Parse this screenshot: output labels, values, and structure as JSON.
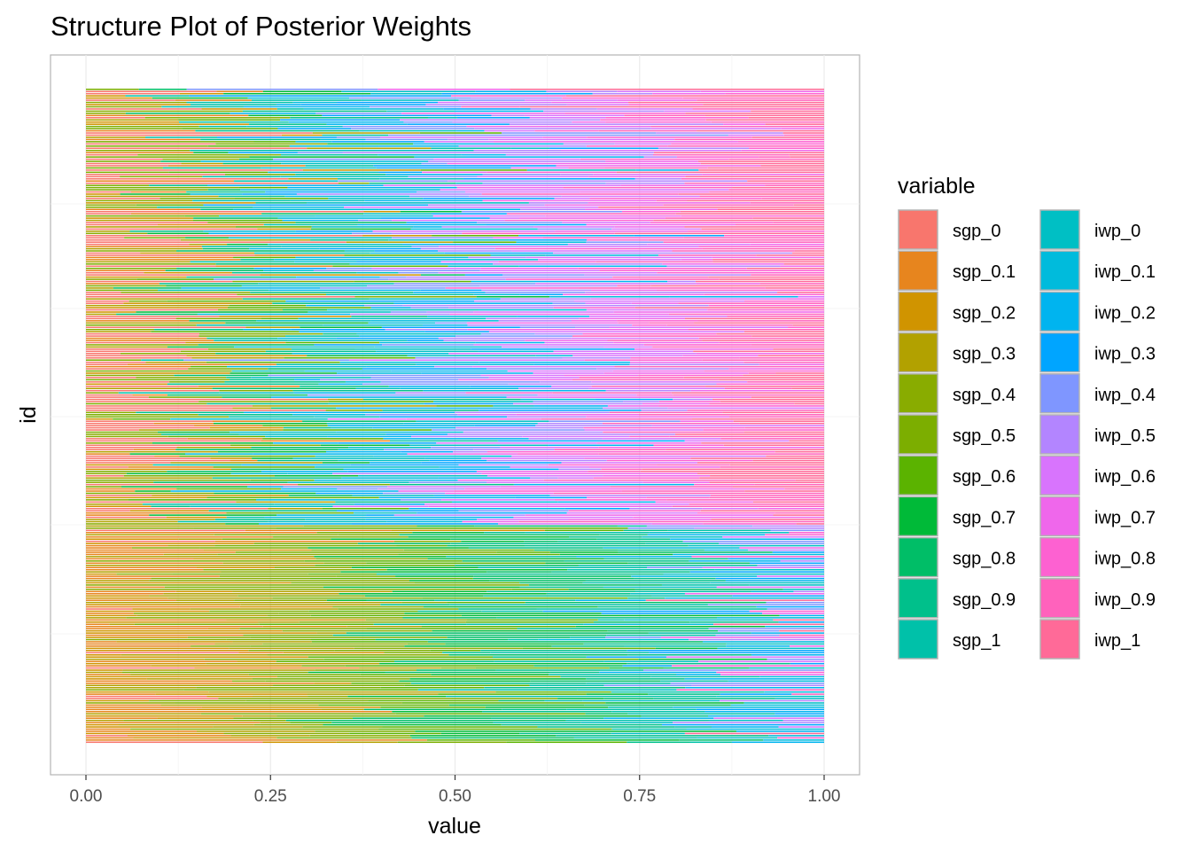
{
  "chart_data": {
    "type": "bar",
    "orientation": "horizontal-stacked",
    "title": "Structure Plot of Posterior Weights",
    "xlabel": "value",
    "ylabel": "id",
    "xlim": [
      0,
      1
    ],
    "x_ticks": [
      "0.00",
      "0.25",
      "0.50",
      "0.75",
      "1.00"
    ],
    "x_tick_values": [
      0,
      0.25,
      0.5,
      0.75,
      1.0
    ],
    "grid": true,
    "n_ids": 300,
    "legend": {
      "title": "variable",
      "placement": "right",
      "columns": 2
    },
    "series": [
      {
        "name": "sgp_0",
        "color": "#F8766D"
      },
      {
        "name": "sgp_0.1",
        "color": "#E7851E"
      },
      {
        "name": "sgp_0.2",
        "color": "#D09400"
      },
      {
        "name": "sgp_0.3",
        "color": "#B2A100"
      },
      {
        "name": "sgp_0.4",
        "color": "#89AC00"
      },
      {
        "name": "sgp_0.5",
        "color": "#7CAE00"
      },
      {
        "name": "sgp_0.6",
        "color": "#5BB300"
      },
      {
        "name": "sgp_0.7",
        "color": "#00BA38"
      },
      {
        "name": "sgp_0.8",
        "color": "#00BE67"
      },
      {
        "name": "sgp_0.9",
        "color": "#00C08B"
      },
      {
        "name": "sgp_1",
        "color": "#00C1A9"
      },
      {
        "name": "iwp_0",
        "color": "#00BFC4"
      },
      {
        "name": "iwp_0.1",
        "color": "#00BBDC"
      },
      {
        "name": "iwp_0.2",
        "color": "#00B4EF"
      },
      {
        "name": "iwp_0.3",
        "color": "#00A5FF"
      },
      {
        "name": "iwp_0.4",
        "color": "#7F96FF"
      },
      {
        "name": "iwp_0.5",
        "color": "#B385FF"
      },
      {
        "name": "iwp_0.6",
        "color": "#D874FD"
      },
      {
        "name": "iwp_0.7",
        "color": "#EF67EB"
      },
      {
        "name": "iwp_0.8",
        "color": "#FD61D1"
      },
      {
        "name": "iwp_0.9",
        "color": "#FF62BC"
      },
      {
        "name": "iwp_1",
        "color": "#FF6A98"
      }
    ]
  }
}
